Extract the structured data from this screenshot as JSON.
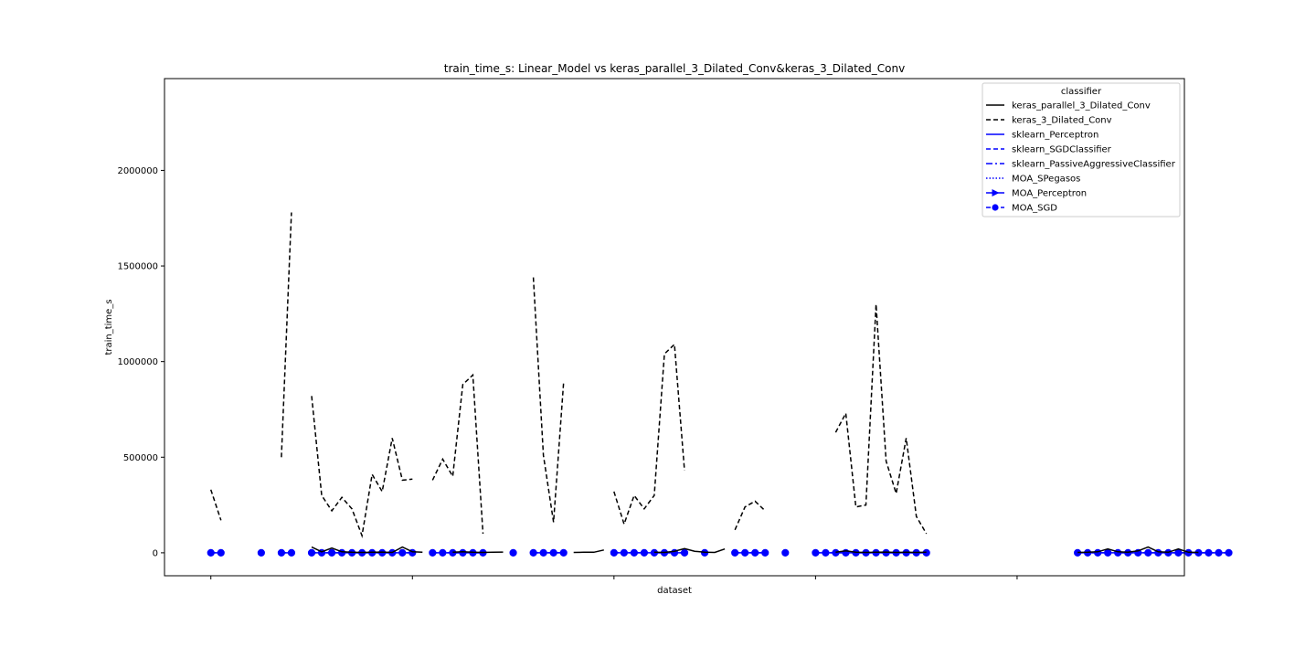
{
  "chart_data": {
    "type": "line",
    "title": "train_time_s: Linear_Model vs keras_parallel_3_Dilated_Conv&keras_3_Dilated_Conv",
    "xlabel": "dataset",
    "ylabel": "train_time_s",
    "ylim": [
      -120000,
      2480000
    ],
    "xlim": [
      -4.6,
      96.6
    ],
    "ytick_values": [
      0,
      500000,
      1000000,
      1500000,
      2000000
    ],
    "ytick_labels": [
      "0",
      "500000",
      "1000000",
      "1500000",
      "2000000"
    ],
    "xtick_values": [
      0,
      20,
      40,
      60,
      80
    ],
    "grid": false,
    "legend": {
      "title": "classifier",
      "placement": "top-right"
    },
    "series": [
      {
        "name": "keras_parallel_3_Dilated_Conv",
        "color": "#000000",
        "dash": "solid",
        "marker": "none",
        "values": [
          null,
          null,
          null,
          null,
          null,
          null,
          null,
          null,
          null,
          null,
          30000,
          5000,
          25000,
          5000,
          3000,
          2000,
          3000,
          4000,
          2000,
          30000,
          5000,
          3000,
          null,
          null,
          3000,
          5000,
          3000,
          2000,
          3000,
          4000,
          null,
          null,
          null,
          null,
          null,
          null,
          2000,
          3000,
          3000,
          15000,
          null,
          null,
          null,
          null,
          3000,
          2000,
          8000,
          22000,
          8000,
          3000,
          2000,
          20000,
          null,
          null,
          null,
          null,
          null,
          null,
          null,
          null,
          null,
          null,
          3000,
          10000,
          3000,
          2000,
          3000,
          4000,
          2000,
          3000,
          2000,
          3000,
          null,
          null,
          null,
          null,
          null,
          null,
          null,
          null,
          null,
          null,
          null,
          null,
          null,
          null,
          2000,
          3000,
          5000,
          20000,
          5000,
          3000,
          10000,
          30000,
          5000,
          3000,
          20000,
          3000,
          2000
        ]
      },
      {
        "name": "keras_3_Dilated_Conv",
        "color": "#000000",
        "dash": "dashed",
        "marker": "none",
        "values": [
          330000,
          170000,
          null,
          null,
          null,
          null,
          null,
          500000,
          1780000,
          null,
          820000,
          300000,
          220000,
          290000,
          230000,
          90000,
          410000,
          320000,
          600000,
          380000,
          385000,
          null,
          380000,
          490000,
          400000,
          880000,
          930000,
          100000,
          null,
          null,
          null,
          null,
          1440000,
          510000,
          160000,
          890000,
          null,
          null,
          null,
          null,
          320000,
          150000,
          300000,
          230000,
          300000,
          1040000,
          1090000,
          430000,
          null,
          null,
          null,
          null,
          120000,
          240000,
          270000,
          220000,
          null,
          null,
          null,
          null,
          null,
          null,
          630000,
          730000,
          240000,
          250000,
          1300000,
          480000,
          310000,
          600000,
          190000,
          100000,
          null,
          null,
          null,
          null,
          null,
          null,
          null,
          null,
          null,
          null,
          null,
          null,
          null,
          null,
          null,
          null,
          null,
          null,
          null,
          null,
          null,
          null,
          null,
          null,
          null,
          null,
          null,
          null
        ]
      },
      {
        "name": "sklearn_Perceptron",
        "color": "#0000ff",
        "dash": "solid",
        "marker": "none",
        "values": [
          0,
          0,
          null,
          null,
          null,
          0,
          null,
          0,
          0,
          null,
          0,
          0,
          0,
          0,
          0,
          0,
          0,
          0,
          0,
          0,
          0,
          null,
          0,
          0,
          0,
          0,
          0,
          0,
          null,
          null,
          0,
          null,
          0,
          0,
          0,
          0,
          null,
          null,
          null,
          null,
          0,
          0,
          0,
          0,
          0,
          0,
          0,
          0,
          null,
          0,
          null,
          null,
          0,
          0,
          0,
          0,
          null,
          0,
          null,
          null,
          0,
          0,
          0,
          0,
          0,
          0,
          0,
          0,
          0,
          0,
          0,
          0,
          null,
          null,
          null,
          null,
          null,
          null,
          null,
          null,
          null,
          null,
          null,
          null,
          null,
          null,
          0,
          0,
          0,
          0,
          0,
          0,
          0,
          0,
          0,
          0,
          0,
          0,
          0,
          0,
          0,
          0
        ]
      },
      {
        "name": "sklearn_SGDClassifier",
        "color": "#0000ff",
        "dash": "dashed",
        "marker": "none",
        "values": []
      },
      {
        "name": "sklearn_PassiveAggressiveClassifier",
        "color": "#0000ff",
        "dash": "dashdot",
        "marker": "none",
        "values": []
      },
      {
        "name": "MOA_SPegasos",
        "color": "#0000ff",
        "dash": "dotted",
        "marker": "none",
        "values": []
      },
      {
        "name": "MOA_Perceptron",
        "color": "#0000ff",
        "dash": "solid",
        "marker": "triangle-right",
        "values": []
      },
      {
        "name": "MOA_SGD",
        "color": "#0000ff",
        "dash": "dashed",
        "marker": "circle",
        "values": [
          0,
          0,
          null,
          null,
          null,
          0,
          null,
          0,
          0,
          null,
          0,
          0,
          0,
          0,
          0,
          0,
          0,
          0,
          0,
          0,
          0,
          null,
          0,
          0,
          0,
          0,
          0,
          0,
          null,
          null,
          0,
          null,
          0,
          0,
          0,
          0,
          null,
          null,
          null,
          null,
          0,
          0,
          0,
          0,
          0,
          0,
          0,
          0,
          null,
          0,
          null,
          null,
          0,
          0,
          0,
          0,
          null,
          0,
          null,
          null,
          0,
          0,
          0,
          0,
          0,
          0,
          0,
          0,
          0,
          0,
          0,
          0,
          null,
          null,
          null,
          null,
          null,
          null,
          null,
          null,
          null,
          null,
          null,
          null,
          null,
          null,
          0,
          0,
          0,
          0,
          0,
          0,
          0,
          0,
          0,
          0,
          0,
          0,
          0,
          0,
          0,
          0
        ]
      }
    ]
  }
}
